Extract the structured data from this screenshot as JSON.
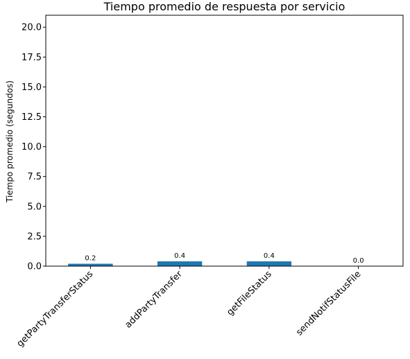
{
  "chart_data": {
    "type": "bar",
    "title": "Tiempo promedio de respuesta por servicio",
    "xlabel": "",
    "ylabel": "Tiempo promedio (segundos)",
    "categories": [
      "getPartyTransferStatus",
      "addPartyTransfer",
      "getFileStatus",
      "sendNotifStatusFile"
    ],
    "values": [
      0.2,
      0.4,
      0.4,
      0.0
    ],
    "data_labels": [
      "0.2",
      "0.4",
      "0.4",
      "0.0"
    ],
    "ylim": [
      0,
      21
    ],
    "yticks": [
      0.0,
      2.5,
      5.0,
      7.5,
      10.0,
      12.5,
      15.0,
      17.5,
      20.0
    ],
    "ytick_labels": [
      "0.0",
      "2.5",
      "5.0",
      "7.5",
      "10.0",
      "12.5",
      "15.0",
      "17.5",
      "20.0"
    ],
    "bar_color": "#1f77b4",
    "grid": false,
    "legend": "none"
  }
}
